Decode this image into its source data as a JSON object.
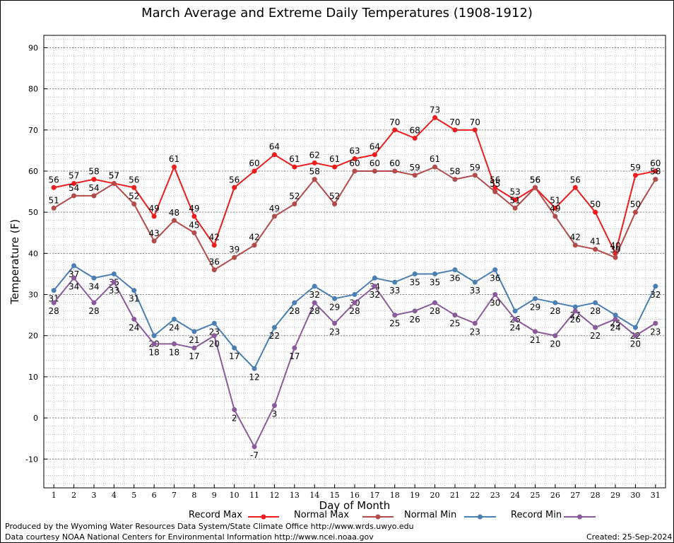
{
  "chart_data": {
    "type": "line",
    "title": "March Average and Extreme Daily Temperatures (1908-1912)",
    "xlabel": "Day of Month",
    "ylabel": "Temperature (F)",
    "ylim": [
      -17,
      93
    ],
    "xlim": [
      0.5,
      31.5
    ],
    "grid": true,
    "y_ticks": [
      -10,
      0,
      10,
      20,
      30,
      40,
      50,
      60,
      70,
      80,
      90
    ],
    "x": [
      1,
      2,
      3,
      4,
      5,
      6,
      7,
      8,
      9,
      10,
      11,
      12,
      13,
      14,
      15,
      16,
      17,
      18,
      19,
      20,
      21,
      22,
      23,
      24,
      25,
      26,
      27,
      28,
      29,
      30,
      31
    ],
    "legend_position": "bottom",
    "series": [
      {
        "name": "Record Max",
        "color": "#ee1c1c",
        "label_pos": "above",
        "values": [
          56,
          57,
          58,
          57,
          56,
          49,
          61,
          49,
          42,
          56,
          60,
          64,
          61,
          62,
          61,
          63,
          64,
          70,
          68,
          73,
          70,
          70,
          56,
          53,
          56,
          51,
          56,
          50,
          40,
          59,
          60
        ]
      },
      {
        "name": "Normal Max",
        "color": "#b44a4a",
        "label_pos": "above",
        "values": [
          51,
          54,
          54,
          57,
          52,
          43,
          48,
          45,
          36,
          39,
          42,
          49,
          52,
          58,
          52,
          60,
          60,
          60,
          59,
          61,
          58,
          59,
          55,
          51,
          56,
          49,
          42,
          41,
          39,
          50,
          58
        ]
      },
      {
        "name": "Normal Min",
        "color": "#4a7fb4",
        "label_pos": "below",
        "values": [
          31,
          37,
          34,
          35,
          31,
          20,
          24,
          21,
          23,
          17,
          12,
          22,
          28,
          32,
          29,
          30,
          34,
          33,
          35,
          35,
          36,
          33,
          36,
          26,
          29,
          28,
          27,
          28,
          25,
          22,
          32
        ]
      },
      {
        "name": "Record Min",
        "color": "#8a5a9a",
        "label_pos": "below",
        "values": [
          28,
          34,
          28,
          33,
          24,
          18,
          18,
          17,
          20,
          2,
          -7,
          3,
          17,
          28,
          23,
          28,
          32,
          25,
          26,
          28,
          25,
          23,
          30,
          24,
          21,
          20,
          26,
          22,
          24,
          20,
          23
        ]
      }
    ]
  },
  "footer": {
    "produced_by": "Produced by the Wyoming Water Resources Data System/State Climate Office http://www.wrds.uwyo.edu",
    "data_courtesy": "Data courtesy NOAA National Centers for Environmental Information http://www.ncei.noaa.gov",
    "created": "Created:  25-Sep-2024"
  }
}
